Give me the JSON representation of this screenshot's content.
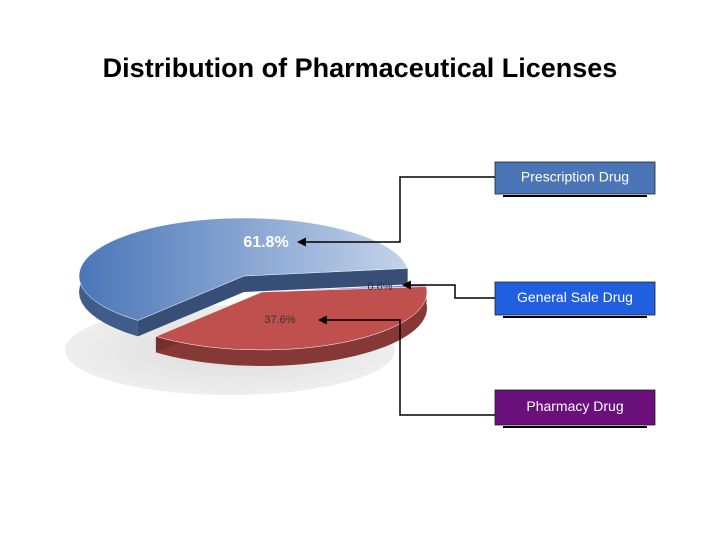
{
  "chart_data": {
    "type": "pie",
    "title": "Distribution of Pharmaceutical Licenses",
    "categories": [
      "Prescription Drug",
      "General Sale Drug",
      "Pharmacy Drug"
    ],
    "values": [
      61.8,
      0.6,
      37.6
    ],
    "value_labels": [
      "61.8%",
      "0.6%",
      "37.6%"
    ],
    "colors": [
      "#5b84c4",
      "#8080f0",
      "#c0504d"
    ]
  }
}
